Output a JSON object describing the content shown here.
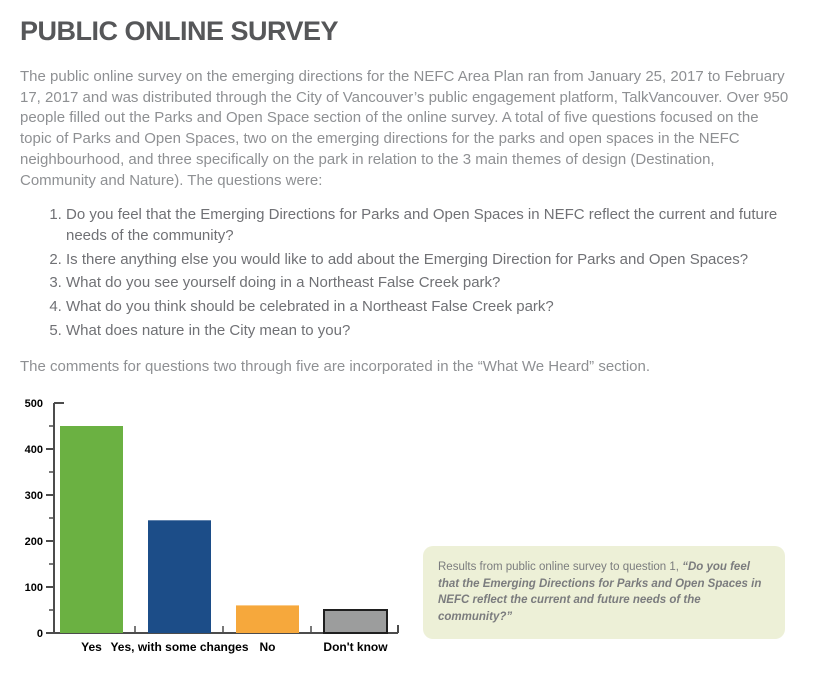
{
  "page": {
    "title": "PUBLIC ONLINE SURVEY",
    "intro": "The public online survey on the emerging directions for the NEFC Area Plan ran from January 25, 2017 to February 17, 2017 and was distributed through the City of Vancouver’s public engagement platform, TalkVancouver. Over 950 people filled out the Parks and Open Space section of the online survey. A total of five questions focused on the topic of Parks and Open Spaces, two on the emerging directions for the parks and open spaces in the NEFC neighbourhood, and three specifically on the park in relation to the 3 main themes of design (Destination, Community and Nature). The questions were:",
    "questions": [
      "Do you feel that the Emerging Directions for Parks and Open Spaces in NEFC reflect the current and future needs of the community?",
      "Is there anything else you would like to add about the Emerging Direction for Parks and Open Spaces?",
      "What do you see yourself doing in a Northeast False Creek park?",
      "What do you think should be celebrated in a Northeast False Creek park?",
      "What does nature in the City mean to you?"
    ],
    "comments_note": "The comments for questions two through five are incorporated in the “What We Heard” section."
  },
  "chart_data": {
    "type": "bar",
    "categories": [
      "Yes",
      "Yes, with some changes",
      "No",
      "Don't know"
    ],
    "values": [
      450,
      245,
      60,
      50
    ],
    "bar_colors": [
      "#6bb142",
      "#1c4d88",
      "#f6a83c",
      "#9c9d9d"
    ],
    "bar_border_colors": [
      null,
      null,
      null,
      "#1f1f1f"
    ],
    "title": "",
    "xlabel": "",
    "ylabel": "",
    "ylim": [
      0,
      500
    ],
    "yticks": [
      0,
      100,
      200,
      300,
      400,
      500
    ],
    "minor_tick_interval": 50,
    "grid": false,
    "legend": false,
    "axis_color": "#4c4c4c",
    "tick_label_color": "#000000"
  },
  "callout": {
    "prefix": "Results from public online survey to question 1, ",
    "quote": "“Do you feel that the Emerging Directions for Parks and Open Spaces in NEFC reflect the current and future needs of the community?”",
    "background": "#edf0d7"
  }
}
